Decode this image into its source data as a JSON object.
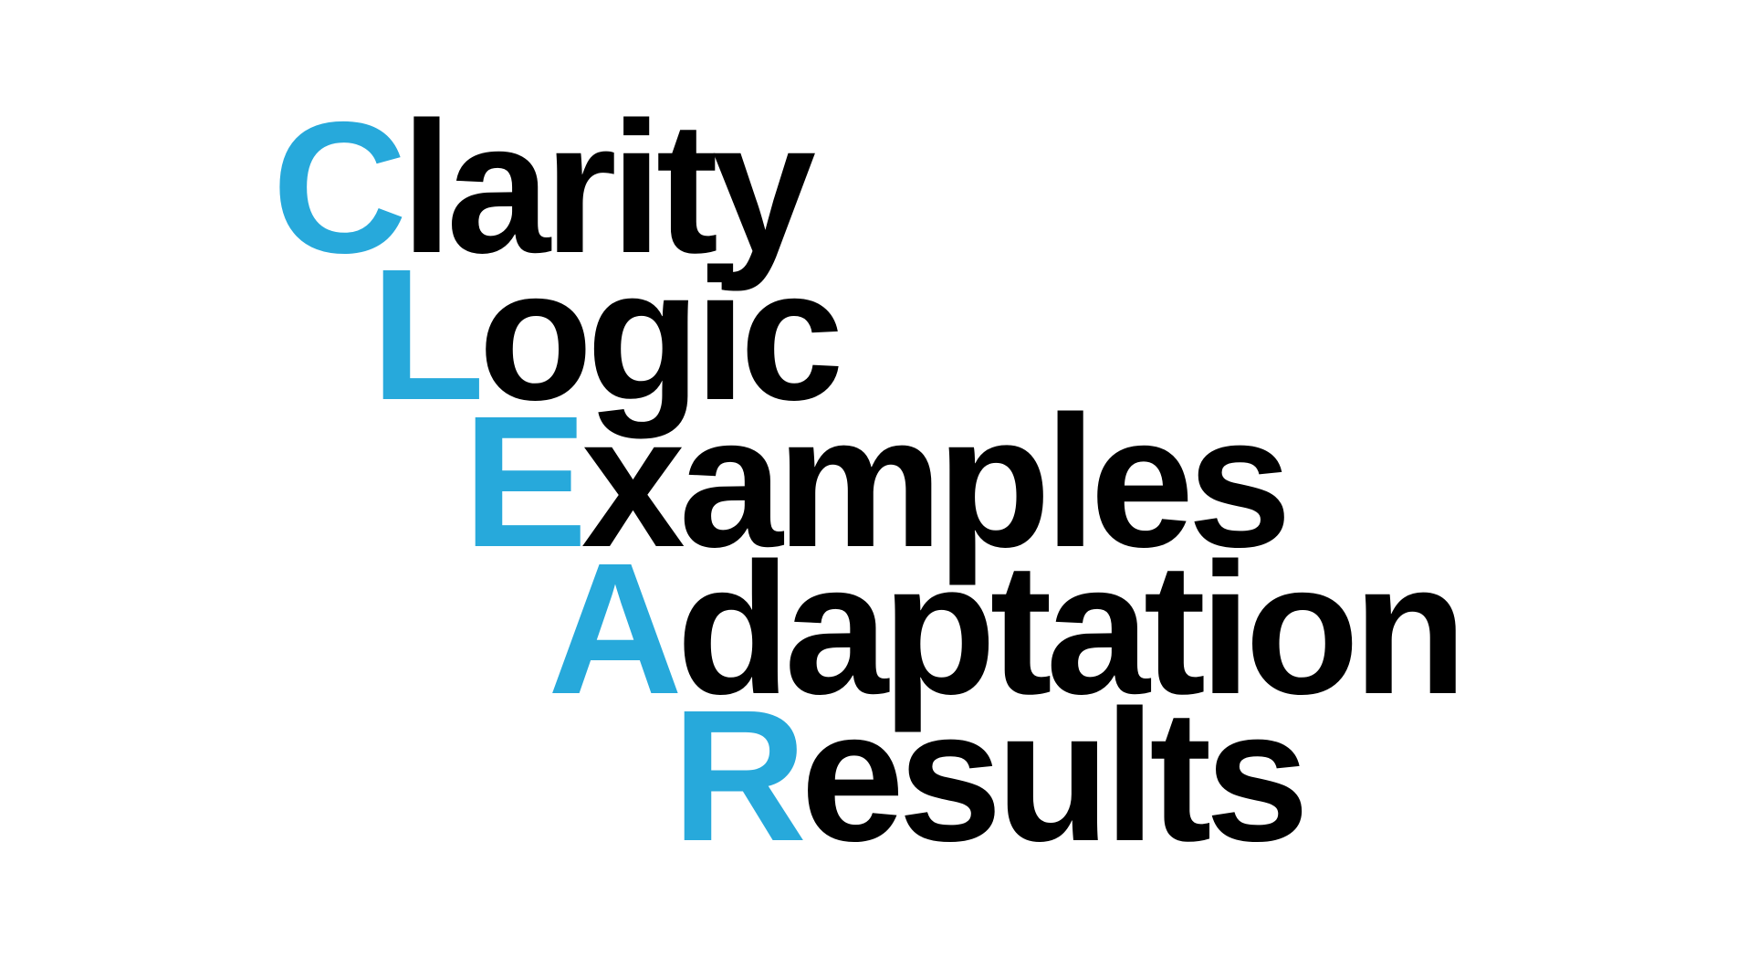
{
  "colors": {
    "accent": "#27A9DB",
    "text": "#000000",
    "background": "#FFFFFF"
  },
  "acrostic": {
    "lines": [
      {
        "initial": "C",
        "rest": "larity"
      },
      {
        "initial": "L",
        "rest": "ogic"
      },
      {
        "initial": "E",
        "rest": "xamples"
      },
      {
        "initial": "A",
        "rest": "daptation"
      },
      {
        "initial": "R",
        "rest": "esults"
      }
    ]
  }
}
